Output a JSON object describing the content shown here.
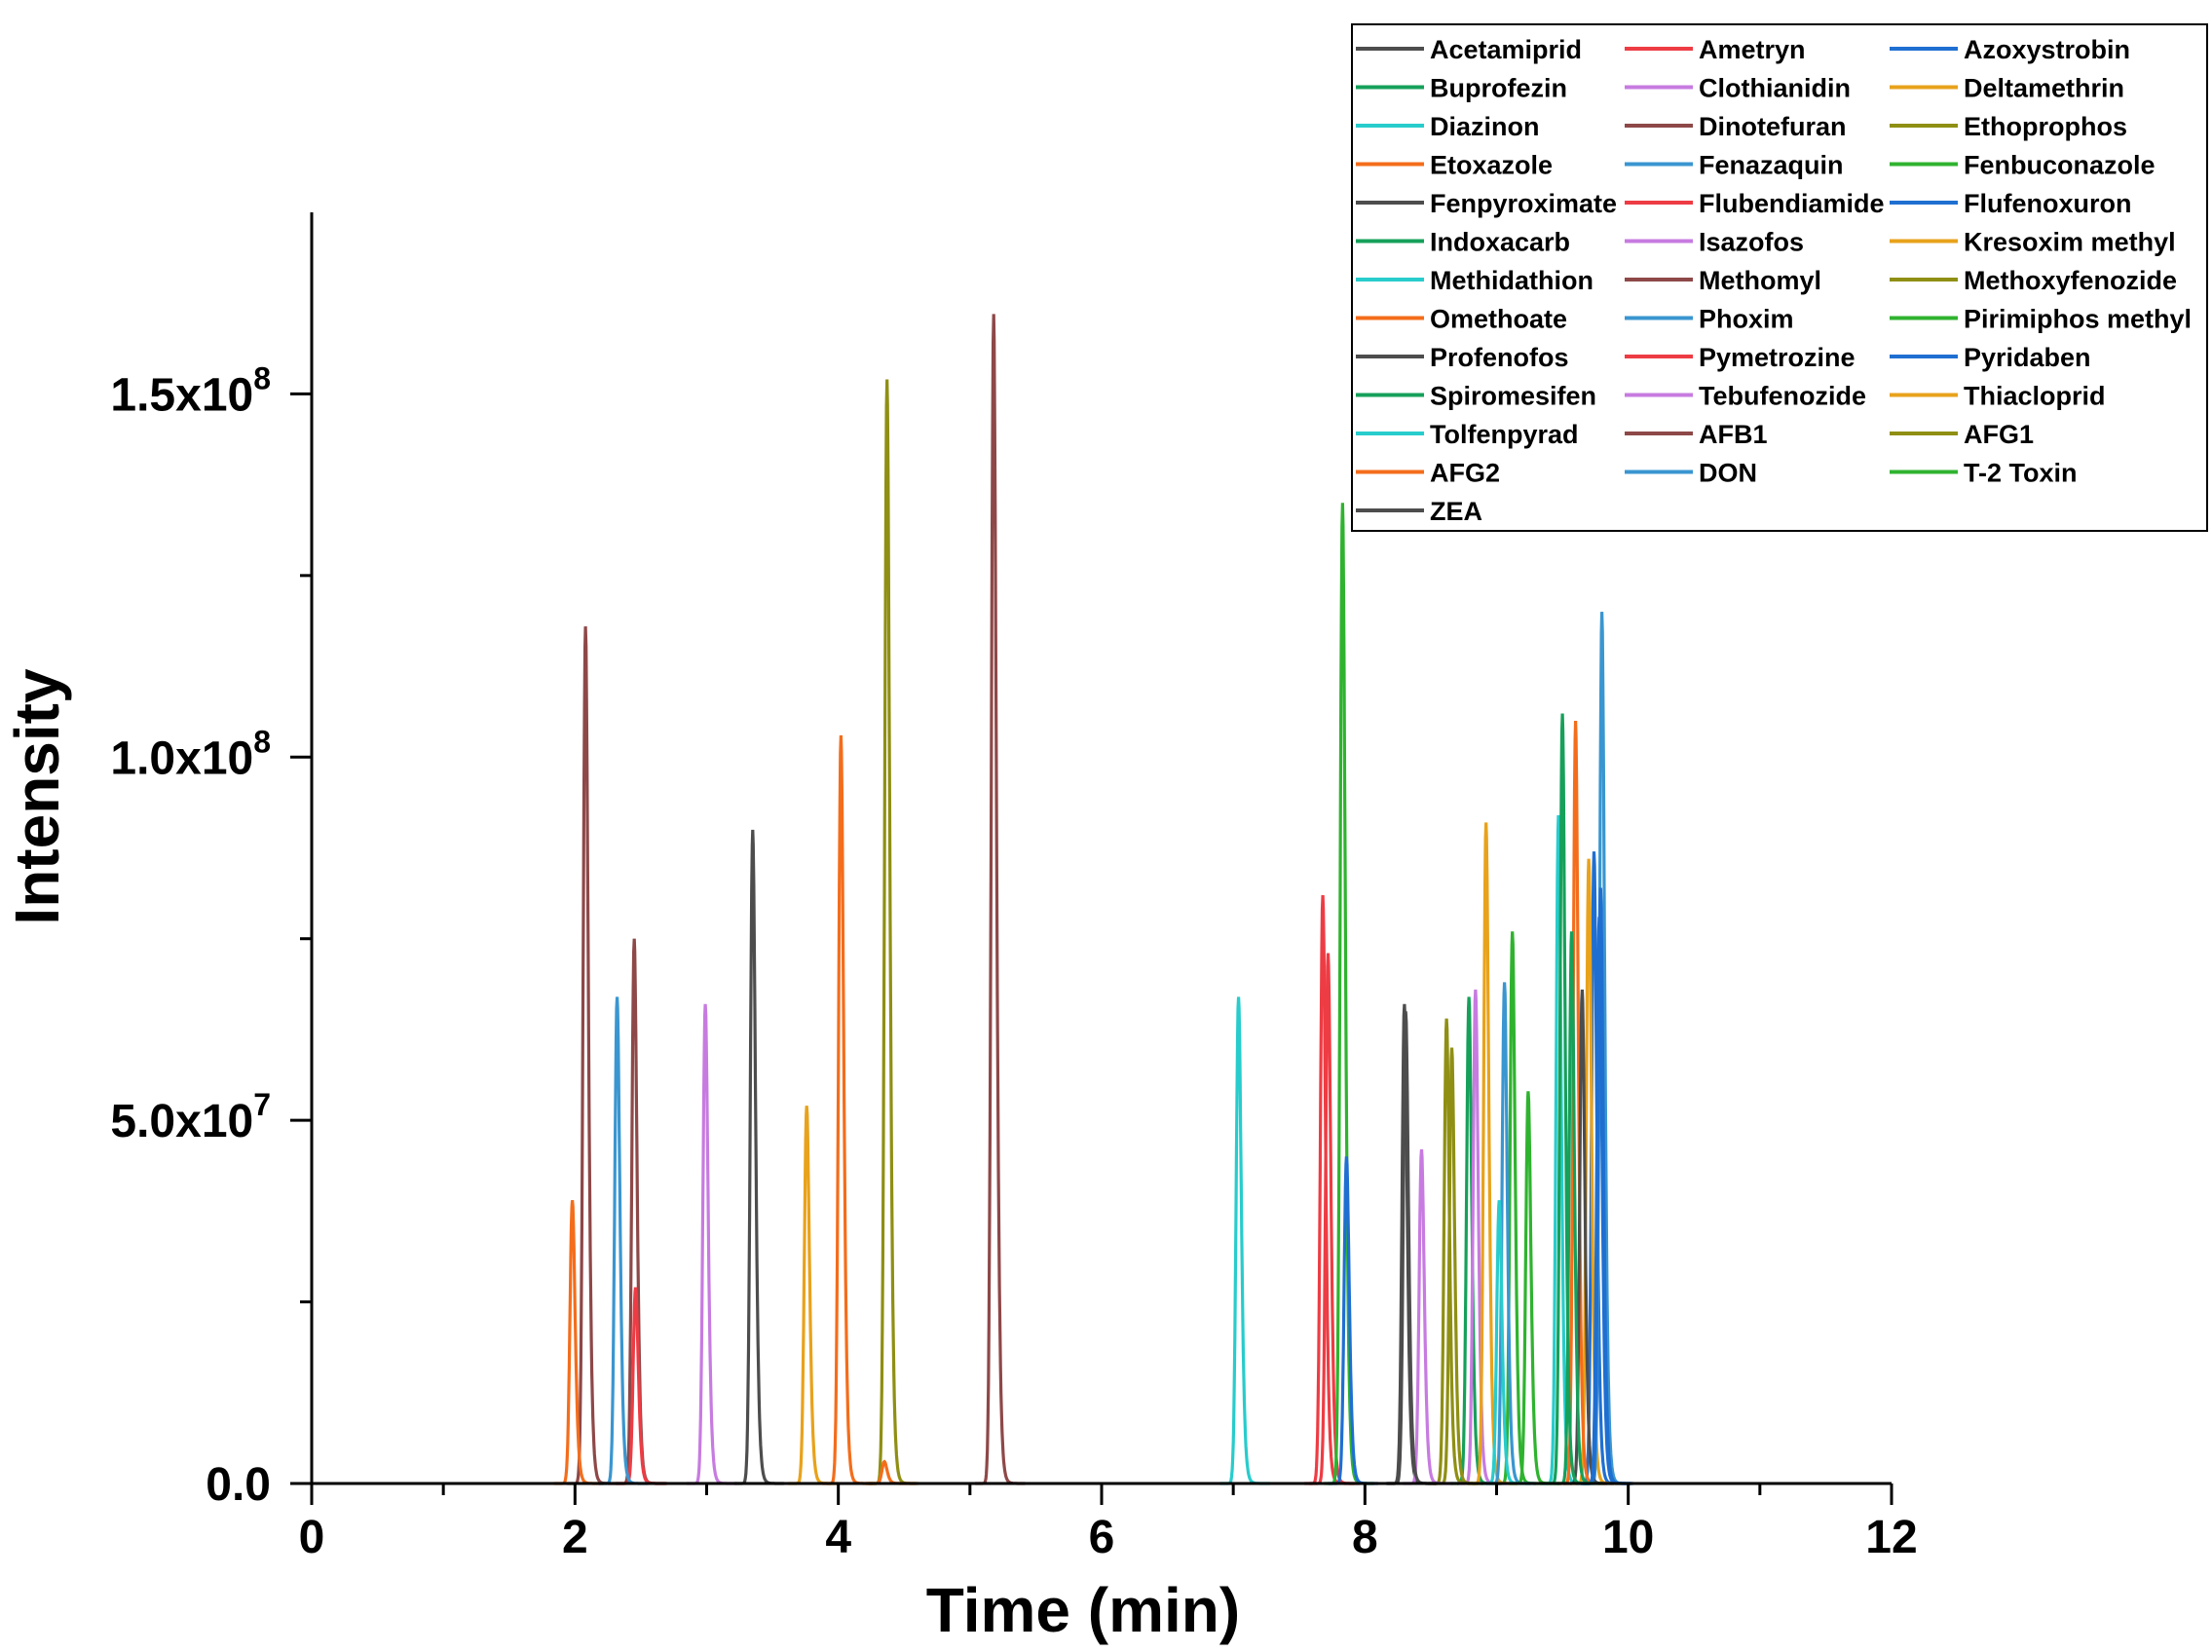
{
  "chart_data": {
    "type": "line",
    "title": "",
    "xlabel": "Time (min)",
    "ylabel": "Intensity",
    "xlim": [
      0,
      12
    ],
    "ylim": [
      0,
      175000000
    ],
    "x_ticks": [
      {
        "value": 0,
        "label": "0"
      },
      {
        "value": 2,
        "label": "2"
      },
      {
        "value": 4,
        "label": "4"
      },
      {
        "value": 6,
        "label": "6"
      },
      {
        "value": 8,
        "label": "8"
      },
      {
        "value": 10,
        "label": "10"
      },
      {
        "value": 12,
        "label": "12"
      }
    ],
    "y_ticks": [
      {
        "value": 0,
        "mantissa": "0.0",
        "exponent": ""
      },
      {
        "value": 50000000,
        "mantissa": "5.0x10",
        "exponent": "7"
      },
      {
        "value": 100000000,
        "mantissa": "1.0x10",
        "exponent": "8"
      },
      {
        "value": 150000000,
        "mantissa": "1.5x10",
        "exponent": "8"
      }
    ],
    "legend_position": "top-right",
    "palette": [
      "#4d4d4d",
      "#ee3c44",
      "#1f6fd1",
      "#16a05a",
      "#c77be0",
      "#e8a21b",
      "#28cccc",
      "#8e4848",
      "#8f8f14",
      "#f46d1b",
      "#3a96d0",
      "#2fb32f"
    ],
    "series": [
      {
        "name": "Acetamiprid",
        "color": "#4d4d4d",
        "rt": 3.35,
        "peak": 90000000
      },
      {
        "name": "Ametryn",
        "color": "#ee3c44",
        "rt": 7.68,
        "peak": 81000000
      },
      {
        "name": "Azoxystrobin",
        "color": "#1f6fd1",
        "rt": 9.74,
        "peak": 87000000
      },
      {
        "name": "Buprofezin",
        "color": "#16a05a",
        "rt": 8.79,
        "peak": 67000000
      },
      {
        "name": "Clothianidin",
        "color": "#c77be0",
        "rt": 2.99,
        "peak": 66000000
      },
      {
        "name": "Deltamethrin",
        "color": "#e8a21b",
        "rt": 9.7,
        "peak": 86000000
      },
      {
        "name": "Diazinon",
        "color": "#28cccc",
        "rt": 9.47,
        "peak": 92000000
      },
      {
        "name": "Dinotefuran",
        "color": "#8e4848",
        "rt": 2.08,
        "peak": 118000000
      },
      {
        "name": "Ethoprophos",
        "color": "#8f8f14",
        "rt": 8.62,
        "peak": 64000000
      },
      {
        "name": "Etoxazole",
        "color": "#f46d1b",
        "rt": 9.6,
        "peak": 105000000
      },
      {
        "name": "Fenazaquin",
        "color": "#3a96d0",
        "rt": 9.8,
        "peak": 120000000
      },
      {
        "name": "Fenbuconazole",
        "color": "#2fb32f",
        "rt": 9.12,
        "peak": 76000000
      },
      {
        "name": "Fenpyroximate",
        "color": "#4d4d4d",
        "rt": 9.65,
        "peak": 68000000
      },
      {
        "name": "Flubendiamide",
        "color": "#ee3c44",
        "rt": 7.72,
        "peak": 73000000
      },
      {
        "name": "Flufenoxuron",
        "color": "#1f6fd1",
        "rt": 9.78,
        "peak": 78000000
      },
      {
        "name": "Indoxacarb",
        "color": "#16a05a",
        "rt": 9.5,
        "peak": 106000000
      },
      {
        "name": "Isazofos",
        "color": "#c77be0",
        "rt": 8.84,
        "peak": 68000000
      },
      {
        "name": "Kresoxim methyl",
        "color": "#e8a21b",
        "rt": 8.92,
        "peak": 91000000
      },
      {
        "name": "Methidathion",
        "color": "#28cccc",
        "rt": 7.04,
        "peak": 67000000
      },
      {
        "name": "Methomyl",
        "color": "#8e4848",
        "rt": 2.45,
        "peak": 75000000
      },
      {
        "name": "Methoxyfenozide",
        "color": "#8f8f14",
        "rt": 8.66,
        "peak": 60000000
      },
      {
        "name": "Omethoate",
        "color": "#f46d1b",
        "rt": 1.98,
        "peak": 39000000
      },
      {
        "name": "Phoxim",
        "color": "#3a96d0",
        "rt": 9.06,
        "peak": 69000000
      },
      {
        "name": "Pirimiphos methyl",
        "color": "#2fb32f",
        "rt": 9.24,
        "peak": 54000000
      },
      {
        "name": "Profenofos",
        "color": "#4d4d4d",
        "rt": 8.3,
        "peak": 66000000
      },
      {
        "name": "Pymetrozine",
        "color": "#ee3c44",
        "rt": 2.46,
        "peak": 27000000
      },
      {
        "name": "Pyridaben",
        "color": "#1f6fd1",
        "rt": 9.79,
        "peak": 82000000
      },
      {
        "name": "Spiromesifen",
        "color": "#16a05a",
        "rt": 9.57,
        "peak": 76000000
      },
      {
        "name": "Tebufenozide",
        "color": "#c77be0",
        "rt": 8.43,
        "peak": 46000000
      },
      {
        "name": "Thiacloprid",
        "color": "#e8a21b",
        "rt": 3.76,
        "peak": 52000000
      },
      {
        "name": "Tolfenpyrad",
        "color": "#28cccc",
        "rt": 9.02,
        "peak": 39000000
      },
      {
        "name": "AFB1",
        "color": "#8e4848",
        "rt": 5.18,
        "peak": 161000000
      },
      {
        "name": "AFG1",
        "color": "#8f8f14",
        "rt": 4.37,
        "peak": 152000000
      },
      {
        "name": "AFG2",
        "color": "#f46d1b",
        "rt": 4.02,
        "peak": 103000000
      },
      {
        "name": "DON",
        "color": "#3a96d0",
        "rt": 2.32,
        "peak": 67000000
      },
      {
        "name": "T-2 Toxin",
        "color": "#2fb32f",
        "rt": 7.83,
        "peak": 135000000
      },
      {
        "name": "ZEA",
        "color": "#4d4d4d",
        "rt": 8.31,
        "peak": 65000000
      },
      {
        "name": "",
        "color": "#f46d1b",
        "rt": 4.35,
        "peak": 3000000
      },
      {
        "name": "",
        "color": "#1f6fd1",
        "rt": 7.86,
        "peak": 45000000
      }
    ]
  }
}
